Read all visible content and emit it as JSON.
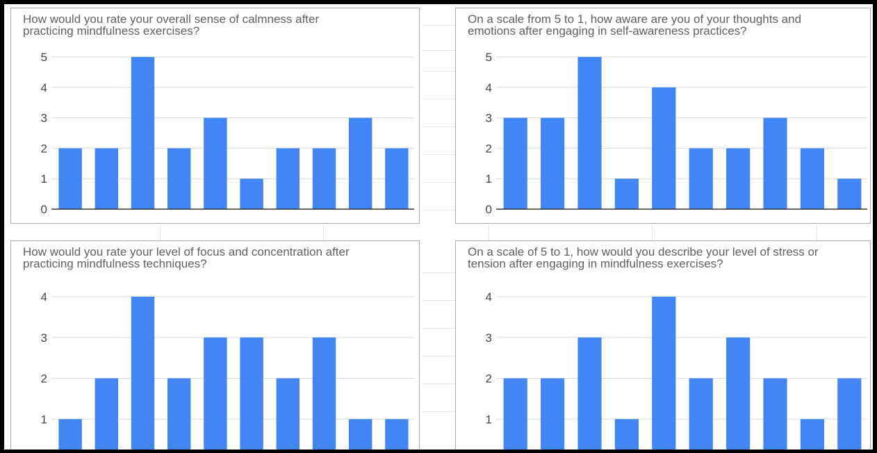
{
  "chart_data": [
    {
      "type": "bar",
      "title": "How would you rate your overall sense of calmness after\npracticing mindfulness exercises?",
      "yticks": [
        0,
        1,
        2,
        3,
        4,
        5
      ],
      "ylim": [
        0,
        5
      ],
      "grid": true,
      "values": [
        2,
        2,
        5,
        2,
        3,
        1,
        2,
        2,
        3,
        2
      ],
      "color": "#4285f4"
    },
    {
      "type": "bar",
      "title": "On a scale from 5 to 1, how aware are you of your thoughts and\nemotions after engaging in self-awareness practices?",
      "yticks": [
        0,
        1,
        2,
        3,
        4,
        5
      ],
      "ylim": [
        0,
        5
      ],
      "grid": true,
      "values": [
        3,
        3,
        5,
        1,
        4,
        2,
        2,
        3,
        2,
        1
      ],
      "color": "#4285f4"
    },
    {
      "type": "bar",
      "title": "How would you rate your level of focus and concentration after\npracticing mindfulness techniques?",
      "yticks": [
        1,
        2,
        3,
        4
      ],
      "ylim": [
        0,
        4
      ],
      "grid": true,
      "values": [
        1,
        2,
        4,
        2,
        3,
        3,
        2,
        3,
        1,
        1
      ],
      "color": "#4285f4"
    },
    {
      "type": "bar",
      "title": "On a scale of 5 to 1, how would you describe your level of stress or\ntension after engaging in mindfulness exercises?",
      "yticks": [
        1,
        2,
        3,
        4
      ],
      "ylim": [
        0,
        4
      ],
      "grid": true,
      "values": [
        2,
        2,
        3,
        1,
        4,
        2,
        3,
        2,
        1,
        2
      ],
      "color": "#4285f4"
    }
  ]
}
